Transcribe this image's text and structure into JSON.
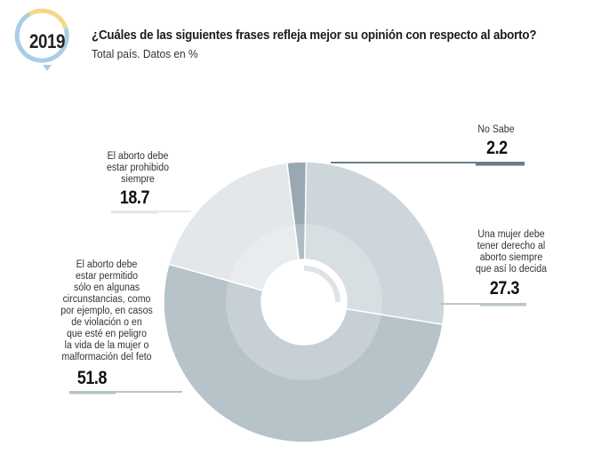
{
  "badge": {
    "year": "2019"
  },
  "header": {
    "title": "¿Cuáles de las siguientes frases refleja mejor su opinión con respecto al aborto?",
    "subtitle": "Total país. Datos en %"
  },
  "colors": {
    "no_sabe": "#9aa9b1",
    "derecho": "#cdd6da",
    "permitido": "#b6c3c9",
    "prohibido": "#e3e7e9",
    "badge_yellow": "#f3d98a",
    "badge_blue": "#a9cde6",
    "leader": "#b9c5cb",
    "leader_dark": "#6d7c85"
  },
  "chart_data": {
    "type": "pie",
    "title": "¿Cuáles de las siguientes frases refleja mejor su opinión con respecto al aborto?",
    "subtitle": "Total país. Datos en %",
    "slices": [
      {
        "label": "No Sabe",
        "value": 2.2
      },
      {
        "label": "Una mujer debe tener derecho al aborto siempre que así lo decida",
        "value": 27.3
      },
      {
        "label": "El aborto debe estar permitido sólo en algunas circunstancias, como por ejemplo, en casos de violación o en que esté en peligro la vida de la mujer o malformación del feto",
        "value": 51.8
      },
      {
        "label": "El aborto debe estar prohibido siempre",
        "value": 18.7
      }
    ]
  },
  "labels": {
    "no_sabe": {
      "text": "No Sabe",
      "value": "2.2"
    },
    "derecho": {
      "line1": "Una mujer debe",
      "line2": "tener derecho al",
      "line3": "aborto siempre",
      "line4": "que así lo decida",
      "value": "27.3"
    },
    "permitido": {
      "line1": "El aborto debe",
      "line2": "estar permitido",
      "line3": "sólo en algunas",
      "line4": "circunstancias, como",
      "line5": "por ejemplo, en casos",
      "line6": "de violación o en",
      "line7": "que esté en peligro",
      "line8": "la vida de la mujer o",
      "line9": "malformación del feto",
      "value": "51.8"
    },
    "prohibido": {
      "line1": "El aborto debe",
      "line2": "estar prohibido",
      "line3": "siempre",
      "value": "18.7"
    }
  }
}
